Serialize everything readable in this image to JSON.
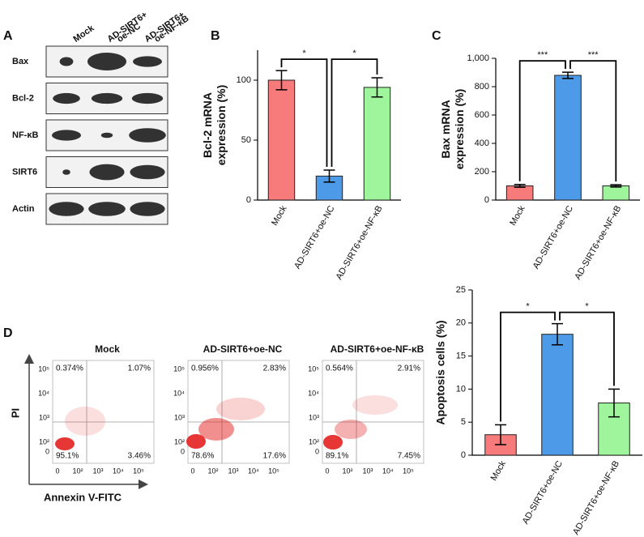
{
  "panel_labels": [
    "A",
    "B",
    "C",
    "D"
  ],
  "western_blot": {
    "columns": [
      [
        "Mock"
      ],
      [
        "AD-SIRT6+",
        "oe-NC"
      ],
      [
        "AD-SIRT6+",
        "oe-NF-κB"
      ]
    ],
    "rows": [
      "Bax",
      "Bcl-2",
      "NF-κB",
      "SIRT6",
      "Actin"
    ]
  },
  "flow_cytometry": {
    "y_label": "PI",
    "x_label": "Annexin V-FITC",
    "y_ticks": [
      "10⁵",
      "10⁴",
      "10³",
      "10²",
      "0"
    ],
    "x_ticks": [
      "0",
      "10²",
      "10³",
      "10⁴",
      "10⁵"
    ],
    "plots": [
      {
        "title": "Mock",
        "quadrants": [
          "0.374%",
          "1.07%",
          "95.1%",
          "3.46%"
        ]
      },
      {
        "title": "AD-SIRT6+oe-NC",
        "quadrants": [
          "0.956%",
          "2.83%",
          "78.6%",
          "17.6%"
        ]
      },
      {
        "title": "AD-SIRT6+oe-NF-κB",
        "quadrants": [
          "0.564%",
          "2.91%",
          "89.1%",
          "7.45%"
        ]
      }
    ]
  },
  "chart_data": [
    {
      "type": "bar",
      "y_label": [
        "Bcl-2 mRNA",
        "expression (%)"
      ],
      "categories": [
        "Mock",
        "AD-SIRT6+oe-NC",
        "AD-SIRT6+oe-NF-κB"
      ],
      "values": [
        100,
        20,
        94
      ],
      "errors": [
        8,
        5,
        8
      ],
      "colors": [
        "#f77b7b",
        "#4d9be8",
        "#9ef59b"
      ],
      "ylim": [
        0,
        125
      ],
      "yticks": [
        0,
        50,
        100
      ],
      "significance": [
        {
          "from": 0,
          "to": 1,
          "label": "*"
        },
        {
          "from": 1,
          "to": 2,
          "label": "*"
        }
      ]
    },
    {
      "type": "bar",
      "y_label": [
        "Bax mRNA",
        "expression (%)"
      ],
      "categories": [
        "Mock",
        "AD-SIRT6+oe-NC",
        "AD-SIRT6+oe-NF-κB"
      ],
      "values": [
        100,
        880,
        100
      ],
      "errors": [
        10,
        22,
        8
      ],
      "colors": [
        "#f77b7b",
        "#4d9be8",
        "#9ef59b"
      ],
      "ylim": [
        0,
        1000
      ],
      "yticks": [
        0,
        200,
        400,
        600,
        800,
        {
          "value": 1000,
          "label": "1,000"
        }
      ],
      "significance": [
        {
          "from": 0,
          "to": 1,
          "label": "***"
        },
        {
          "from": 1,
          "to": 2,
          "label": "***"
        }
      ]
    },
    {
      "type": "bar",
      "y_label": [
        "Apoptosis cells (%)"
      ],
      "categories": [
        "Mock",
        "AD-SIRT6+oe-NC",
        "AD-SIRT6+oe-NF-κB"
      ],
      "values": [
        3.1,
        18.3,
        7.9
      ],
      "errors": [
        1.5,
        1.6,
        2.1
      ],
      "colors": [
        "#f77b7b",
        "#4d9be8",
        "#9ef59b"
      ],
      "ylim": [
        0,
        25
      ],
      "yticks": [
        0,
        5,
        10,
        15,
        20,
        25
      ],
      "significance": [
        {
          "from": 0,
          "to": 1,
          "label": "*"
        },
        {
          "from": 1,
          "to": 2,
          "label": "*"
        }
      ]
    }
  ]
}
